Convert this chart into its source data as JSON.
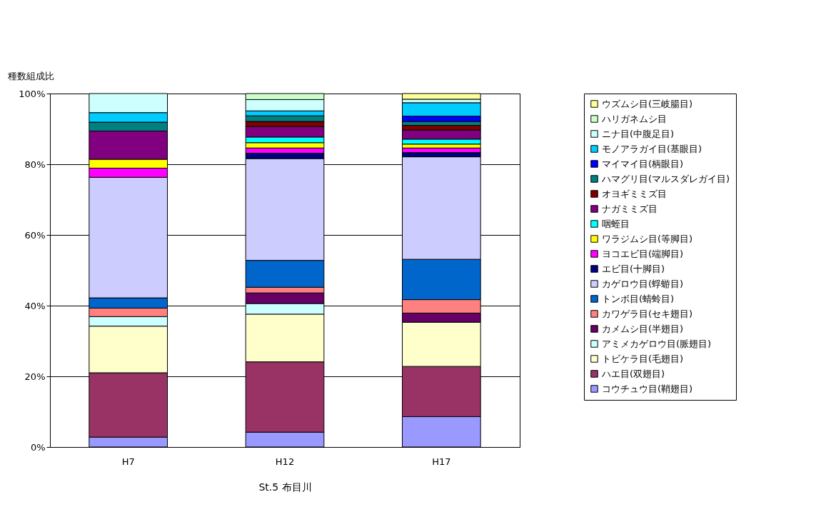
{
  "chart_data": {
    "type": "bar",
    "stacked": true,
    "ylabel": "種数組成比",
    "xlabel": "St.5 布目川",
    "categories": [
      "H7",
      "H12",
      "H17"
    ],
    "ylim": [
      0,
      100
    ],
    "yticks": [
      {
        "value": 0,
        "label": "0%"
      },
      {
        "value": 20,
        "label": "20%"
      },
      {
        "value": 40,
        "label": "40%"
      },
      {
        "value": 60,
        "label": "60%"
      },
      {
        "value": 80,
        "label": "80%"
      },
      {
        "value": 100,
        "label": "100%"
      }
    ],
    "grid": "y",
    "legend": "right",
    "series": [
      {
        "name": "コウチュウ目(鞘翅目)",
        "color": "#9999ff",
        "values": [
          2.8,
          4.2,
          8.6
        ]
      },
      {
        "name": "ハエ目(双翅目)",
        "color": "#993366",
        "values": [
          18.2,
          19.9,
          14.2
        ]
      },
      {
        "name": "トビケラ目(毛翅目)",
        "color": "#ffffcc",
        "values": [
          13.2,
          13.5,
          12.5
        ]
      },
      {
        "name": "アミメカゲロウ目(脈翅目)",
        "color": "#ccffff",
        "values": [
          2.7,
          3.0,
          null
        ]
      },
      {
        "name": "カメムシ目(半翅目)",
        "color": "#660066",
        "values": [
          null,
          3.0,
          2.6
        ]
      },
      {
        "name": "カワゲラ目(セキ翅目)",
        "color": "#ff8080",
        "values": [
          2.4,
          1.6,
          3.8
        ]
      },
      {
        "name": "トンボ目(蜻蛉目)",
        "color": "#0066cc",
        "values": [
          2.9,
          7.6,
          11.4
        ]
      },
      {
        "name": "カゲロウ目(蜉蝣目)",
        "color": "#ccccff",
        "values": [
          34.1,
          28.8,
          29.0
        ]
      },
      {
        "name": "エビ目(十脚目)",
        "color": "#000080",
        "values": [
          null,
          1.5,
          1.2
        ]
      },
      {
        "name": "ヨコエビ目(端脚目)",
        "color": "#ff00ff",
        "values": [
          2.6,
          1.5,
          1.3
        ]
      },
      {
        "name": "ワラジムシ目(等脚目)",
        "color": "#ffff00",
        "values": [
          2.5,
          1.5,
          1.1
        ]
      },
      {
        "name": "咽蛭目",
        "color": "#00ffff",
        "values": [
          null,
          1.6,
          1.4
        ]
      },
      {
        "name": "ナガミミズ目",
        "color": "#800080",
        "values": [
          8.0,
          3.0,
          2.6
        ]
      },
      {
        "name": "オヨギミミズ目",
        "color": "#800000",
        "values": [
          null,
          1.4,
          1.3
        ]
      },
      {
        "name": "ハマグリ目(マルスダレガイ目)",
        "color": "#008080",
        "values": [
          2.5,
          1.6,
          1.1
        ]
      },
      {
        "name": "マイマイ目(柄眼目)",
        "color": "#0000ff",
        "values": [
          null,
          null,
          1.5
        ]
      },
      {
        "name": "モノアラガイ目(基眼目)",
        "color": "#00ccff",
        "values": [
          2.7,
          1.4,
          3.8
        ]
      },
      {
        "name": "ニナ目(中腹足目)",
        "color": "#ccfffe",
        "values": [
          5.4,
          3.2,
          1.0
        ]
      },
      {
        "name": "ハリガネムシ目",
        "color": "#ccffcc",
        "values": [
          null,
          1.7,
          null
        ]
      },
      {
        "name": "ウズムシ目(三岐腸目)",
        "color": "#ffff99",
        "values": [
          null,
          null,
          1.6
        ]
      }
    ]
  }
}
